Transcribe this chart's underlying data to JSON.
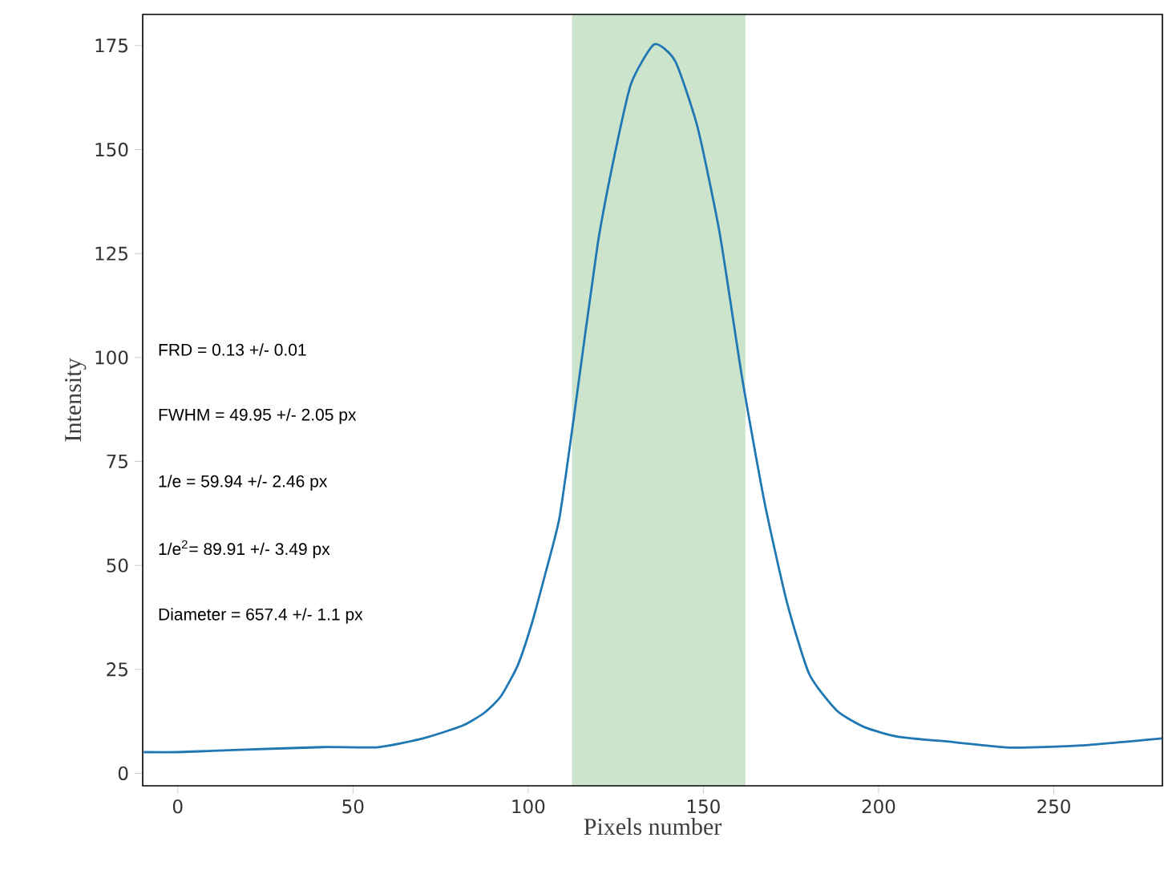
{
  "chart_data": {
    "type": "line",
    "xlabel": "Pixels number",
    "ylabel": "Intensity",
    "x": [
      -9.7,
      0,
      16,
      41.4,
      57.3,
      70,
      81.1,
      87.4,
      92.2,
      97,
      101,
      104.9,
      108.9,
      112.8,
      119.8,
      124.6,
      129.4,
      136,
      142,
      148.4,
      154.7,
      161.1,
      167.4,
      173.8,
      180.2,
      188.1,
      196,
      205.6,
      221.5,
      237.3,
      257.9,
      280.8
    ],
    "series": [
      {
        "color": "#1f77b4",
        "values": [
          5.1,
          5.1,
          5.6,
          6.3,
          6.3,
          8.4,
          11.4,
          14.5,
          18.5,
          25.9,
          35.9,
          48,
          61.3,
          84.1,
          127,
          148.4,
          165.9,
          175.3,
          171.2,
          155.2,
          129.7,
          94.9,
          65.4,
          41.3,
          23.9,
          15.1,
          11.1,
          8.8,
          7.5,
          6.2,
          6.7,
          8.4
        ]
      }
    ],
    "xlim": [
      -10,
      281
    ],
    "ylim": [
      -3,
      182.5
    ],
    "xticks": [
      0,
      50,
      100,
      150,
      200,
      250
    ],
    "yticks": [
      0,
      25,
      50,
      75,
      100,
      125,
      150,
      175
    ],
    "bands": [
      {
        "axis": "x",
        "from": 112.5,
        "to": 162,
        "color": "#cce4cc"
      }
    ],
    "grid": false,
    "line_style": "solid",
    "marker": "none",
    "annotations": [
      "FRD = 0.13 +/- 0.01",
      "FWHM = 49.95 +/- 2.05 px",
      "1/e = 59.94 +/- 2.46 px",
      "1/e$^{2}$= 89.91 +/- 3.49 px",
      "Diameter = 657.4 +/- 1.1 px"
    ]
  }
}
